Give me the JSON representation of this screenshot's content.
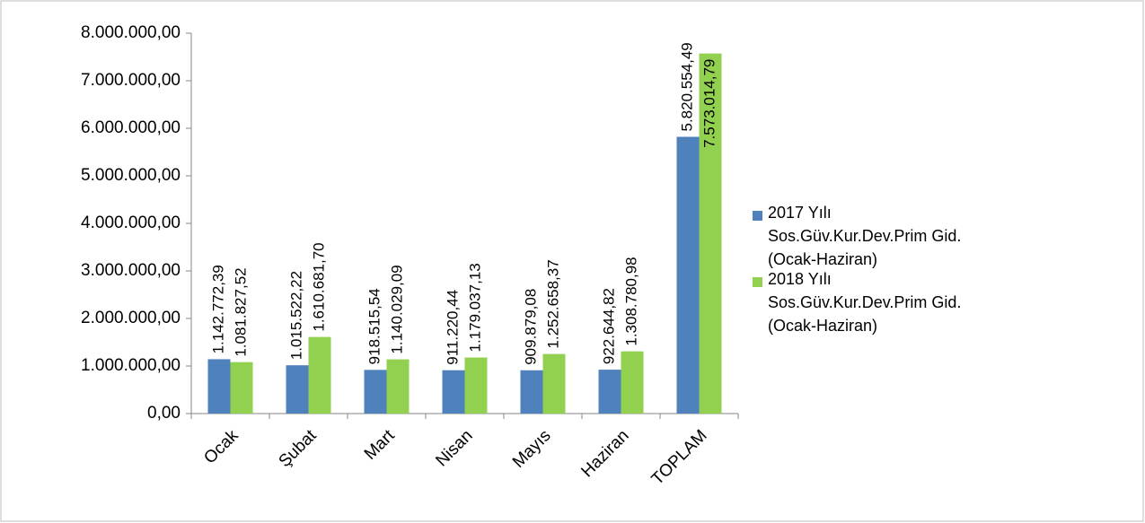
{
  "chart_data": {
    "type": "bar",
    "categories": [
      "Ocak",
      "Şubat",
      "Mart",
      "Nisan",
      "Mayıs",
      "Haziran",
      "TOPLAM"
    ],
    "series": [
      {
        "name": "2017 Yılı Sos.Güv.Kur.Dev.Prim Gid.(Ocak-Haziran)",
        "color": "#4f81bd",
        "values": [
          1142772.39,
          1015522.22,
          918515.54,
          911220.44,
          909879.08,
          922644.82,
          5820554.49
        ],
        "value_labels": [
          "1.142.772,39",
          "1.015.522,22",
          "918.515,54",
          "911.220,44",
          "909.879,08",
          "922.644,82",
          "5.820.554,49"
        ]
      },
      {
        "name": "2018  Yılı Sos.Güv.Kur.Dev.Prim Gid.(Ocak-Haziran)",
        "color": "#92d050",
        "values": [
          1081827.52,
          1610681.7,
          1140029.09,
          1179037.13,
          1252658.37,
          1308780.98,
          7573014.79
        ],
        "value_labels": [
          "1.081.827,52",
          "1.610.681,70",
          "1.140.029,09",
          "1.179.037,13",
          "1.252.658,37",
          "1.308.780,98",
          "7.573.014,79"
        ]
      }
    ],
    "ylim": [
      0,
      8000000
    ],
    "yticks": [
      {
        "value": 0,
        "label": "0,00"
      },
      {
        "value": 1000000,
        "label": "1.000.000,00"
      },
      {
        "value": 2000000,
        "label": "2.000.000,00"
      },
      {
        "value": 3000000,
        "label": "3.000.000,00"
      },
      {
        "value": 4000000,
        "label": "4.000.000,00"
      },
      {
        "value": 5000000,
        "label": "5.000.000,00"
      },
      {
        "value": 6000000,
        "label": "6.000.000,00"
      },
      {
        "value": 7000000,
        "label": "7.000.000,00"
      },
      {
        "value": 8000000,
        "label": "8.000.000,00"
      }
    ],
    "grid": false,
    "legend": "right"
  }
}
